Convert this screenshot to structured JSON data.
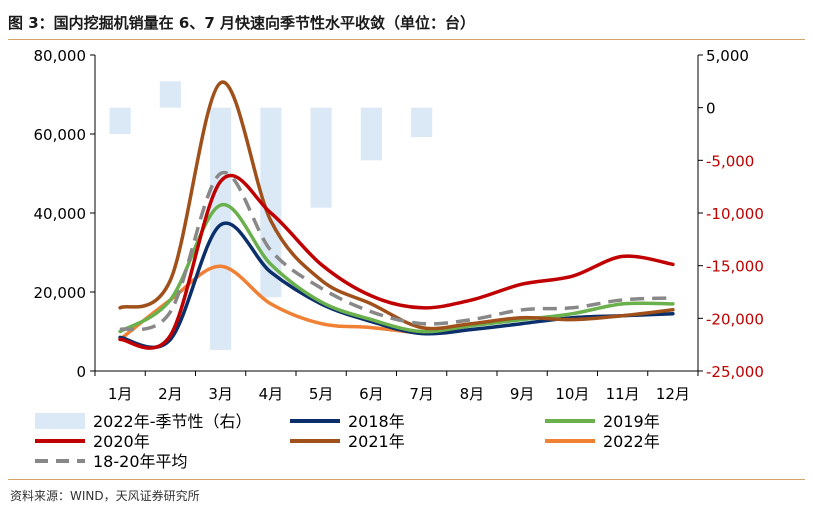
{
  "figure": {
    "title": "图 3：国内挖掘机销量在 6、7 月快速向季节性水平收敛（单位：台）",
    "source": "资料来源：WIND，天风证券研究所"
  },
  "chart_data": {
    "type": "line",
    "categories": [
      "1月",
      "2月",
      "3月",
      "4月",
      "5月",
      "6月",
      "7月",
      "8月",
      "9月",
      "10月",
      "11月",
      "12月"
    ],
    "y_left": {
      "range": [
        0,
        80000
      ],
      "ticks": [
        "0",
        "20,000",
        "40,000",
        "60,000",
        "80,000"
      ],
      "tick_values": [
        0,
        20000,
        40000,
        60000,
        80000
      ]
    },
    "y_right": {
      "range": [
        -25000,
        5000
      ],
      "ticks": [
        "-25,000",
        "-20,000",
        "-15,000",
        "-10,000",
        "-5,000",
        "0",
        "5,000"
      ],
      "tick_values": [
        -25000,
        -20000,
        -15000,
        -10000,
        -5000,
        0,
        5000
      ],
      "negative_color": "#c00000"
    },
    "bar_series": {
      "name": "2022年-季节性（右）",
      "axis": "right",
      "color": "#dbe8f5",
      "values": [
        -2500,
        2500,
        -23000,
        -18000,
        -9500,
        -5000,
        -2800,
        null,
        null,
        null,
        null,
        null
      ]
    },
    "series": [
      {
        "name": "2018年",
        "color": "#0b2f6b",
        "values": [
          8500,
          8000,
          37000,
          25000,
          17000,
          12500,
          9500,
          10500,
          12000,
          13500,
          14000,
          14500
        ]
      },
      {
        "name": "2019年",
        "color": "#6ab04c",
        "values": [
          10000,
          18000,
          42000,
          27000,
          17500,
          13000,
          10000,
          11500,
          13000,
          14500,
          17000,
          17000
        ]
      },
      {
        "name": "2020年",
        "color": "#c00000",
        "values": [
          8000,
          9000,
          48000,
          40000,
          27000,
          19000,
          16000,
          18000,
          22000,
          24000,
          29000,
          27000
        ]
      },
      {
        "name": "2021年",
        "color": "#a0501a",
        "values": [
          16000,
          23000,
          73000,
          38000,
          23000,
          17000,
          11000,
          12000,
          13500,
          13000,
          14000,
          15500
        ]
      },
      {
        "name": "2022年",
        "color": "#f08033",
        "values": [
          8000,
          18000,
          26500,
          17000,
          12000,
          11000,
          9500,
          null,
          null,
          null,
          null,
          null
        ]
      },
      {
        "name": "18-20年平均",
        "color": "#888888",
        "dashed": true,
        "values": [
          10500,
          15000,
          50000,
          30500,
          21000,
          15000,
          12000,
          13000,
          15500,
          16000,
          18000,
          18500
        ]
      }
    ],
    "legend": [
      [
        "2022年-季节性（右）",
        "2018年",
        "2019年"
      ],
      [
        "2020年",
        "2021年",
        "2022年"
      ],
      [
        "18-20年平均"
      ]
    ],
    "legend_position": "bottom",
    "grid": false
  }
}
